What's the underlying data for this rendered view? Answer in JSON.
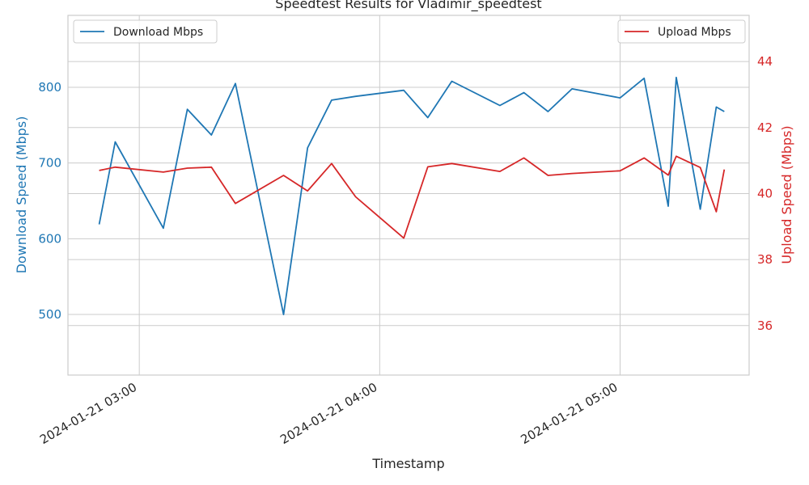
{
  "chart_data": {
    "type": "line",
    "title": "Speedtest Results for Vladimir_speedtest",
    "xlabel": "Timestamp",
    "ylabel_left": "Download Speed (Mbps)",
    "ylabel_right": "Upload Speed (Mbps)",
    "x_ticks": [
      {
        "t": 180,
        "label": "2024-01-21 03:00"
      },
      {
        "t": 240,
        "label": "2024-01-21 04:00"
      },
      {
        "t": 300,
        "label": "2024-01-21 05:00"
      }
    ],
    "xlim": [
      162.2,
      332.2
    ],
    "ylim_left": [
      420,
      895
    ],
    "ylim_right": [
      34.5,
      45.4
    ],
    "yticks_left": [
      500,
      600,
      700,
      800
    ],
    "yticks_right": [
      36,
      38,
      40,
      42,
      44
    ],
    "grid": true,
    "colors": {
      "download": "#1f77b4",
      "upload": "#d62728"
    },
    "legend": [
      {
        "name": "Download Mbps",
        "position": "upper-left"
      },
      {
        "name": "Upload Mbps",
        "position": "upper-right"
      }
    ],
    "series": [
      {
        "name": "Download Mbps",
        "axis": "left",
        "x": [
          170,
          174,
          186,
          192,
          198,
          204,
          216,
          222,
          228,
          234,
          246,
          252,
          258,
          270,
          276,
          282,
          288,
          300,
          306,
          312,
          314,
          320,
          324,
          326
        ],
        "y": [
          619,
          728,
          614,
          771,
          737,
          805,
          500,
          720,
          783,
          788,
          796,
          760,
          808,
          776,
          793,
          768,
          798,
          786,
          812,
          643,
          813,
          639,
          774,
          768
        ]
      },
      {
        "name": "Upload Mbps",
        "axis": "right",
        "x": [
          170,
          174,
          186,
          192,
          198,
          204,
          216,
          222,
          228,
          234,
          246,
          252,
          258,
          270,
          276,
          282,
          288,
          300,
          306,
          312,
          314,
          320,
          324,
          326
        ],
        "y": [
          40.7,
          40.8,
          40.65,
          40.77,
          40.8,
          39.7,
          40.55,
          40.08,
          40.91,
          39.9,
          38.65,
          40.81,
          40.91,
          40.67,
          41.08,
          40.55,
          40.61,
          40.69,
          41.08,
          40.56,
          41.13,
          40.79,
          39.45,
          40.73
        ]
      }
    ]
  }
}
